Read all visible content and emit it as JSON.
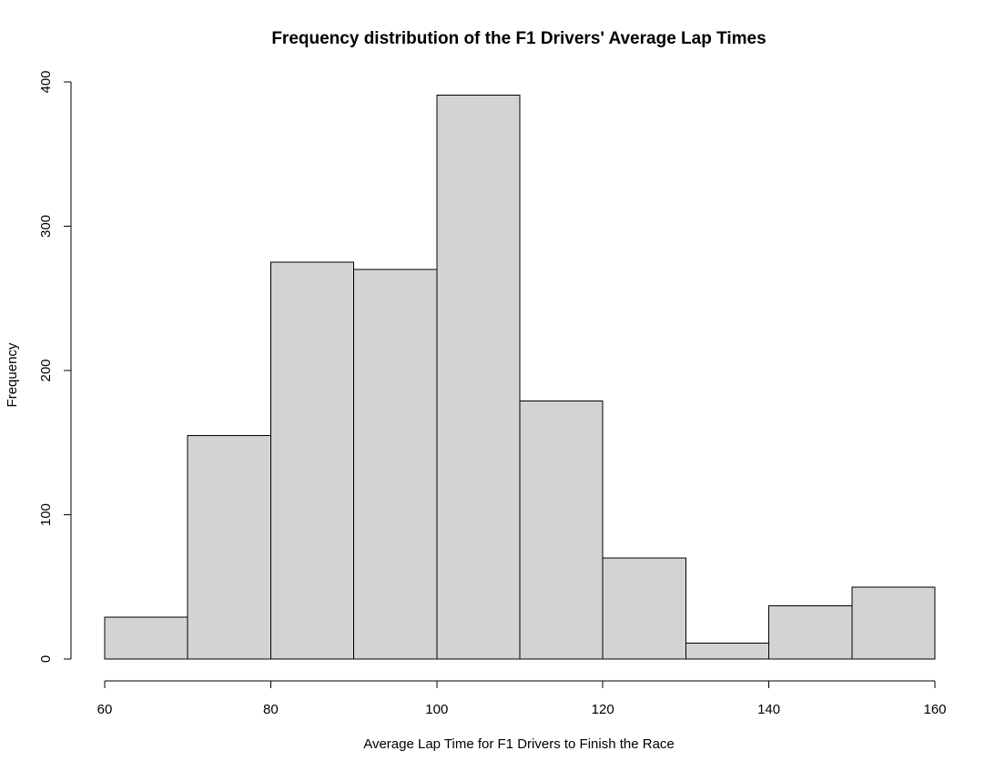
{
  "chart_data": {
    "type": "bar",
    "subtype": "histogram",
    "title": "Frequency distribution of the F1 Drivers' Average Lap Times",
    "xlabel": "Average Lap Time for F1 Drivers to Finish the Race",
    "ylabel": "Frequency",
    "bins": [
      {
        "x0": 60,
        "x1": 70,
        "value": 29
      },
      {
        "x0": 70,
        "x1": 80,
        "value": 155
      },
      {
        "x0": 80,
        "x1": 90,
        "value": 275
      },
      {
        "x0": 90,
        "x1": 100,
        "value": 270
      },
      {
        "x0": 100,
        "x1": 110,
        "value": 391
      },
      {
        "x0": 110,
        "x1": 120,
        "value": 179
      },
      {
        "x0": 120,
        "x1": 130,
        "value": 70
      },
      {
        "x0": 130,
        "x1": 140,
        "value": 11
      },
      {
        "x0": 140,
        "x1": 150,
        "value": 37
      },
      {
        "x0": 150,
        "x1": 160,
        "value": 50
      }
    ],
    "xlim": [
      60,
      160
    ],
    "ylim": [
      0,
      400
    ],
    "xticks": [
      "60",
      "80",
      "100",
      "120",
      "140",
      "160"
    ],
    "yticks": [
      "0",
      "100",
      "200",
      "300",
      "400"
    ],
    "grid": false,
    "colors": {
      "bar_fill": "#d3d3d3",
      "bar_stroke": "#000000",
      "axis": "#000000",
      "background": "#ffffff"
    }
  }
}
